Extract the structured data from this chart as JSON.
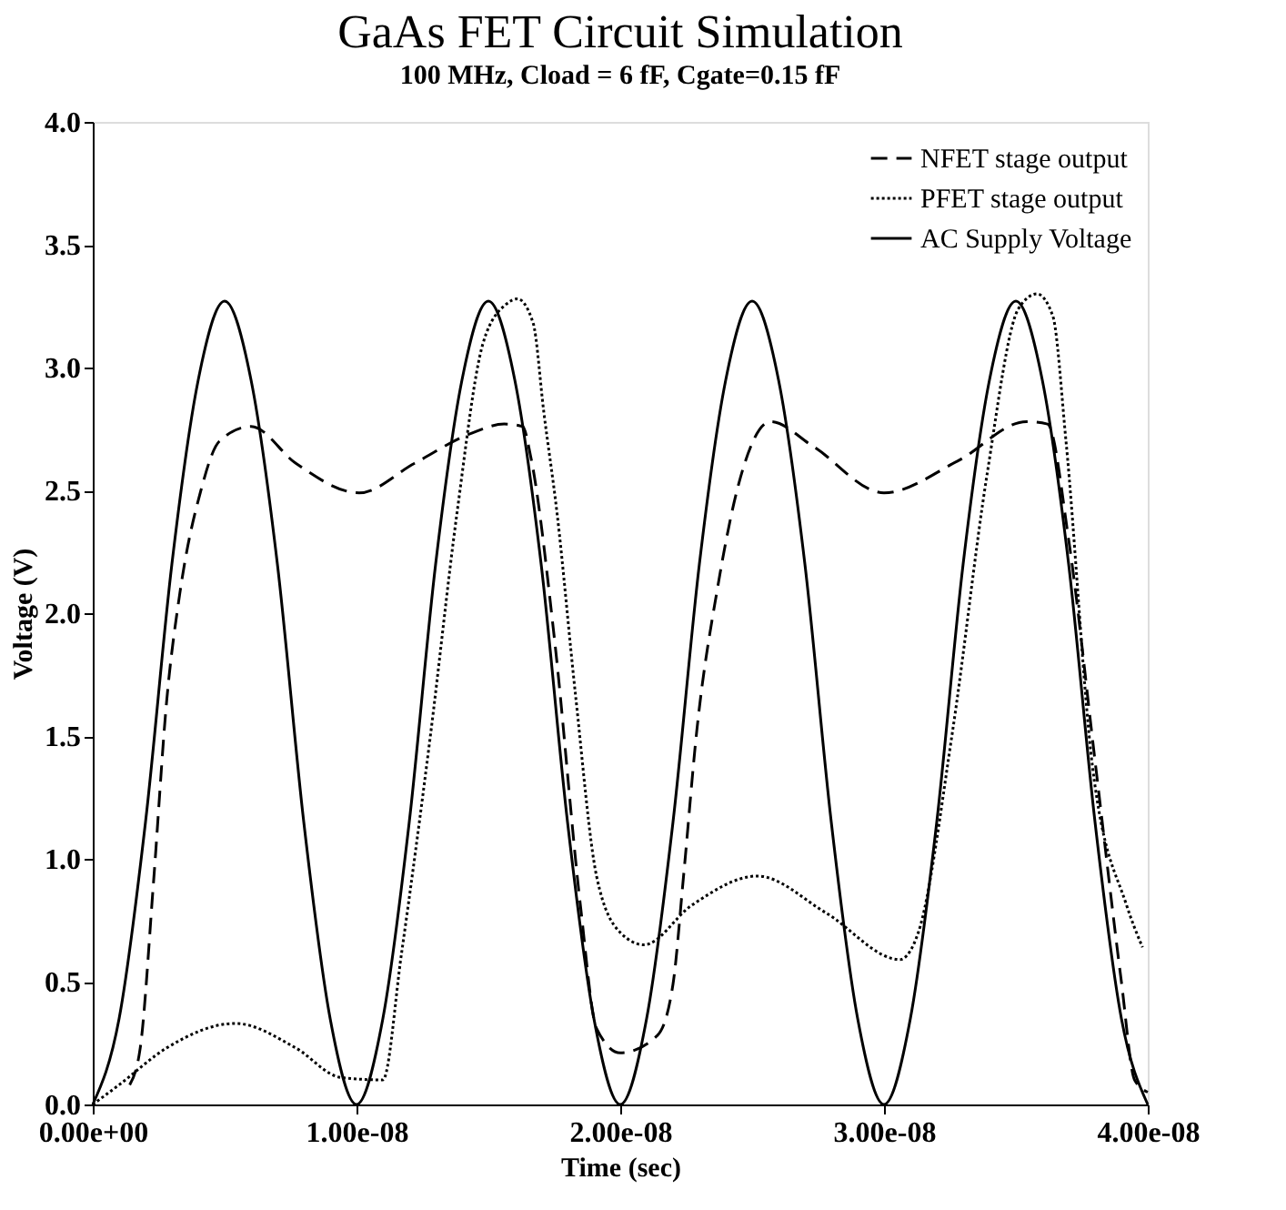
{
  "chart_data": {
    "type": "line",
    "title": "GaAs FET Circuit Simulation",
    "subtitle": "100 MHz, Cload = 6 fF, Cgate=0.15 fF",
    "xlabel": "Time (sec)",
    "ylabel": "Voltage (V)",
    "xlim": [
      0,
      4e-08
    ],
    "ylim": [
      0,
      4
    ],
    "xticks": [
      {
        "value": 0,
        "label": "0.00e+00"
      },
      {
        "value": 1e-08,
        "label": "1.00e-08"
      },
      {
        "value": 2e-08,
        "label": "2.00e-08"
      },
      {
        "value": 3e-08,
        "label": "3.00e-08"
      },
      {
        "value": 4e-08,
        "label": "4.00e-08"
      }
    ],
    "yticks": [
      {
        "value": 0,
        "label": "0.0"
      },
      {
        "value": 0.5,
        "label": "0.5"
      },
      {
        "value": 1,
        "label": "1.0"
      },
      {
        "value": 1.5,
        "label": "1.5"
      },
      {
        "value": 2,
        "label": "2.0"
      },
      {
        "value": 2.5,
        "label": "2.5"
      },
      {
        "value": 3,
        "label": "3.0"
      },
      {
        "value": 3.5,
        "label": "3.5"
      },
      {
        "value": 4,
        "label": "4.0"
      }
    ],
    "grid": false,
    "legend": "top right",
    "marker": "none",
    "series": [
      {
        "name": "NFET stage output",
        "color": "#000000",
        "line_style": "dashed",
        "x": [
          1.4e-09,
          1.8e-09,
          2.3e-09,
          2.8e-09,
          3.3e-09,
          4.1e-09,
          4.8e-09,
          6e-09,
          7.7e-09,
          1.01e-08,
          1.22e-08,
          1.43e-08,
          1.56e-08,
          1.63e-08,
          1.66e-08,
          1.75e-08,
          1.85e-08,
          1.91e-08,
          2e-08,
          2.14e-08,
          2.2e-08,
          2.24e-08,
          2.29e-08,
          2.37e-08,
          2.45e-08,
          2.57e-08,
          2.73e-08,
          3e-08,
          3.28e-08,
          3.54e-08,
          3.62e-08,
          3.7e-08,
          3.8e-08,
          3.9e-08,
          3.95e-08,
          4e-08
        ],
        "values": [
          0.08,
          0.23,
          0.9,
          1.64,
          2.08,
          2.5,
          2.7,
          2.76,
          2.61,
          2.49,
          2.61,
          2.73,
          2.77,
          2.76,
          2.64,
          1.9,
          0.8,
          0.31,
          0.21,
          0.28,
          0.49,
          0.93,
          1.52,
          2.11,
          2.53,
          2.78,
          2.68,
          2.49,
          2.62,
          2.78,
          2.77,
          2.3,
          1.4,
          0.5,
          0.1,
          0.05
        ]
      },
      {
        "name": "PFET stage output",
        "color": "#000000",
        "line_style": "dotted",
        "x": [
          0,
          1e-09,
          2.8e-09,
          5.4e-09,
          7.7e-09,
          9.4e-09,
          1.1e-08,
          1.17e-08,
          1.28e-08,
          1.38e-08,
          1.48e-08,
          1.57e-08,
          1.61e-08,
          1.67e-08,
          1.71e-08,
          1.76e-08,
          1.83e-08,
          1.91e-08,
          2e-08,
          2.09e-08,
          2.27e-08,
          2.52e-08,
          2.78e-08,
          3.06e-08,
          3.13e-08,
          3.26e-08,
          3.39e-08,
          3.51e-08,
          3.58e-08,
          3.64e-08,
          3.69e-08,
          3.79e-08,
          3.92e-08,
          3.98e-08
        ],
        "values": [
          0,
          0.08,
          0.23,
          0.33,
          0.23,
          0.11,
          0.1,
          0.61,
          1.5,
          2.4,
          3.1,
          3.26,
          3.28,
          3.18,
          2.82,
          2.41,
          1.67,
          0.93,
          0.7,
          0.65,
          0.81,
          0.93,
          0.78,
          0.59,
          0.7,
          1.52,
          2.56,
          3.24,
          3.3,
          3.21,
          2.7,
          1.38,
          0.81,
          0.64
        ]
      },
      {
        "name": "AC Supply Voltage",
        "color": "#000000",
        "line_style": "solid",
        "x": [
          0,
          1e-09,
          2e-09,
          3e-09,
          4e-09,
          5e-09,
          6e-09,
          7e-09,
          8e-09,
          9e-09,
          1e-08,
          1.1e-08,
          1.2e-08,
          1.3e-08,
          1.4e-08,
          1.5e-08,
          1.6e-08,
          1.7e-08,
          1.8e-08,
          1.9e-08,
          2e-08,
          2.1e-08,
          2.2e-08,
          2.3e-08,
          2.4e-08,
          2.5e-08,
          2.6e-08,
          2.7e-08,
          2.8e-08,
          2.9e-08,
          3e-08,
          3.1e-08,
          3.2e-08,
          3.3e-08,
          3.4e-08,
          3.5e-08,
          3.6e-08,
          3.7e-08,
          3.8e-08,
          3.9e-08,
          4e-08
        ],
        "values": [
          0,
          0.35,
          1.15,
          2.2,
          2.95,
          3.27,
          2.95,
          2.2,
          1.15,
          0.35,
          0,
          0.35,
          1.15,
          2.2,
          2.95,
          3.27,
          2.95,
          2.2,
          1.15,
          0.35,
          0,
          0.35,
          1.15,
          2.2,
          2.95,
          3.27,
          2.95,
          2.2,
          1.15,
          0.35,
          0,
          0.35,
          1.15,
          2.2,
          2.95,
          3.27,
          2.95,
          2.2,
          1.15,
          0.35,
          0
        ]
      }
    ]
  }
}
